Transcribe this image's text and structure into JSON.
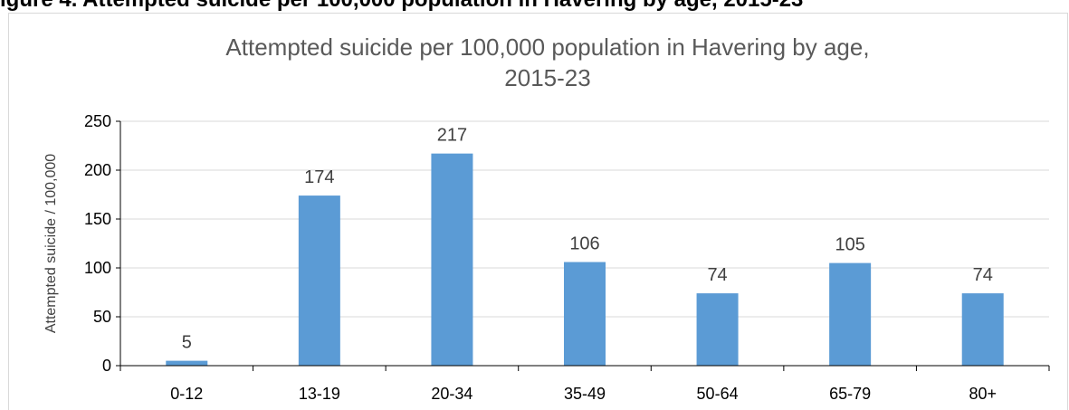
{
  "caption": {
    "heading": "igure 4. Attempted suicide per 100,000 population in Havering by age, 2015-23"
  },
  "colors": {
    "bar": "#5b9bd5",
    "gridline": "#d9d9d9",
    "axis": "#000000",
    "title": "#595959"
  },
  "chart_data": {
    "type": "bar",
    "title_lines": [
      "Attempted suicide per 100,000 population in Havering by age,",
      "2015-23"
    ],
    "xlabel": "",
    "ylabel": "Attempted suicide / 100,000",
    "categories": [
      "0-12",
      "13-19",
      "20-34",
      "35-49",
      "50-64",
      "65-79",
      "80+"
    ],
    "values": [
      5,
      174,
      217,
      106,
      74,
      105,
      74
    ],
    "data_labels": [
      "5",
      "174",
      "217",
      "106",
      "74",
      "105",
      "74"
    ],
    "ylim": [
      0,
      250
    ],
    "yticks": [
      0,
      50,
      100,
      150,
      200,
      250
    ],
    "grid": true,
    "legend": "none"
  }
}
